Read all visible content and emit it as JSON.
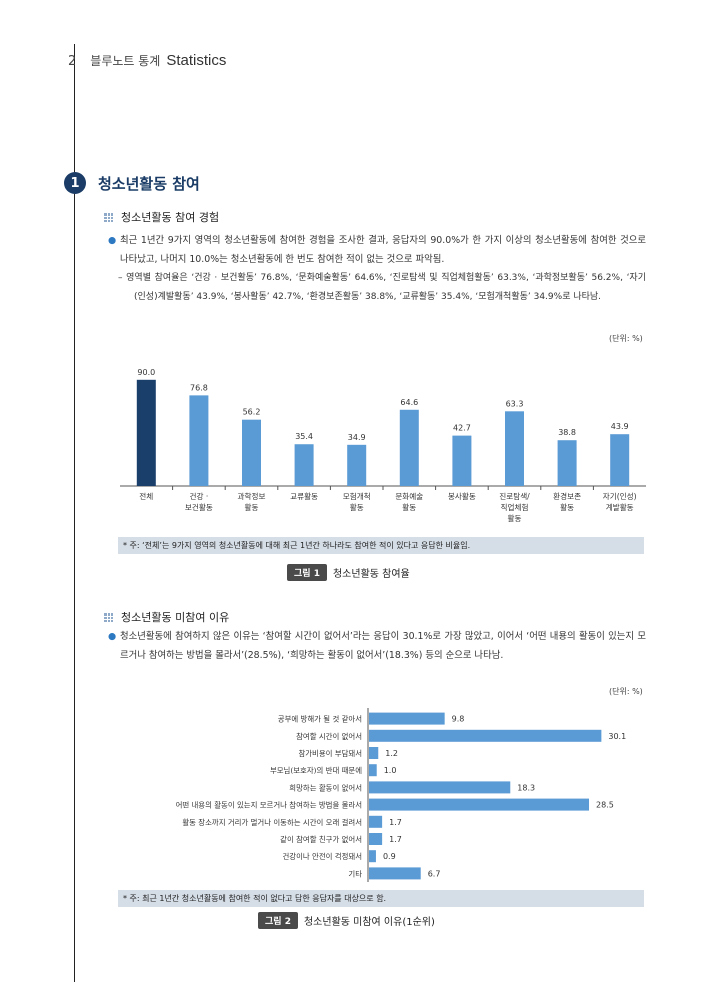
{
  "header": {
    "page_number": "2",
    "title": "블루노트 통계",
    "english": "Statistics"
  },
  "section": {
    "number": "1",
    "title": "청소년활동 참여"
  },
  "subsection1": {
    "title": "청소년활동 참여 경험",
    "paragraph": "최근 1년간 9가지 영역의 청소년활동에 참여한 경험을 조사한 결과, 응답자의 90.0%가 한 가지 이상의 청소년활동에 참여한 것으로 나타났고, 나머지 10.0%는 청소년활동에 한 번도 참여한 적이 없는 것으로 파악됨.",
    "dash": "– 영역별 참여율은 ‘건강 · 보건활동’ 76.8%, ‘문화예술활동’ 64.6%, ‘진로탐색 및 직업체험활동’ 63.3%, ‘과학정보활동’ 56.2%, ‘자기(인성)계발활동’ 43.9%, ‘봉사활동’ 42.7%, ‘환경보존활동’ 38.8%, ‘교류활동’ 35.4%, ‘모험개척활동’ 34.9%로 나타남."
  },
  "figure1": {
    "unit": "(단위: %)",
    "note": "* 주: ‘전체’는 9가지 영역의 청소년활동에 대해 최근 1년간 하나라도 참여한 적이 있다고 응답한 비율임.",
    "caption_tag": "그림 1",
    "caption": "청소년활동 참여율"
  },
  "subsection2": {
    "title": "청소년활동 미참여 이유",
    "paragraph": "청소년활동에 참여하지 않은 이유는 ‘참여할 시간이 없어서’라는 응답이 30.1%로 가장 많았고, 이어서 ‘어떤 내용의 활동이 있는지 모르거나 참여하는 방법을 몰라서’(28.5%), ‘희망하는 활동이 없어서’(18.3%) 등의 순으로 나타남."
  },
  "figure2": {
    "unit": "(단위: %)",
    "note": "* 주: 최근 1년간 청소년활동에 참여한 적이 없다고 답한 응답자를 대상으로 함.",
    "caption_tag": "그림 2",
    "caption": "청소년활동 미참여 이유(1순위)"
  },
  "chart_data": [
    {
      "type": "bar",
      "categories": [
        "전체",
        "건강 · 보건활동",
        "과학정보 활동",
        "교류활동",
        "모험개척 활동",
        "문화예술 활동",
        "봉사활동",
        "진로탐색/ 직업체험 활동",
        "환경보존 활동",
        "자기(인성) 계발활동"
      ],
      "values": [
        90.0,
        76.8,
        56.2,
        35.4,
        34.9,
        64.6,
        42.7,
        63.3,
        38.8,
        43.9
      ],
      "ylim": [
        0,
        100
      ],
      "highlight_color": "#1a3f6b",
      "bar_color": "#5b9bd5"
    },
    {
      "type": "bar",
      "orientation": "horizontal",
      "categories": [
        "공부에 방해가 될 것 같아서",
        "참여할 시간이 없어서",
        "참가비용이 부담돼서",
        "부모님(보호자)의 반대 때문에",
        "희망하는 활동이 없어서",
        "어떤 내용의 활동이 있는지 모르거나 참여하는 방법을 몰라서",
        "활동 장소까지 거리가 멀거나 이동하는 시간이 오래 걸려서",
        "같이 참여할 친구가 없어서",
        "건강이나 안전이 걱정돼서",
        "기타"
      ],
      "values": [
        9.8,
        30.1,
        1.2,
        1.0,
        18.3,
        28.5,
        1.7,
        1.7,
        0.9,
        6.7
      ],
      "bar_color": "#5b9bd5"
    }
  ]
}
